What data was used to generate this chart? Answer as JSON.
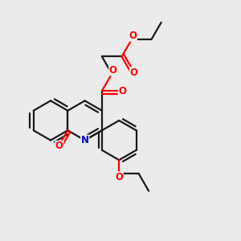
{
  "bg_color": "#ebebeb",
  "bond_color": "#1a1a1a",
  "oxygen_color": "#ff0000",
  "nitrogen_color": "#0000cc",
  "line_width": 1.6,
  "figsize": [
    3.0,
    3.0
  ],
  "dpi": 100,
  "xlim": [
    0.0,
    1.0
  ],
  "ylim": [
    0.0,
    1.0
  ]
}
